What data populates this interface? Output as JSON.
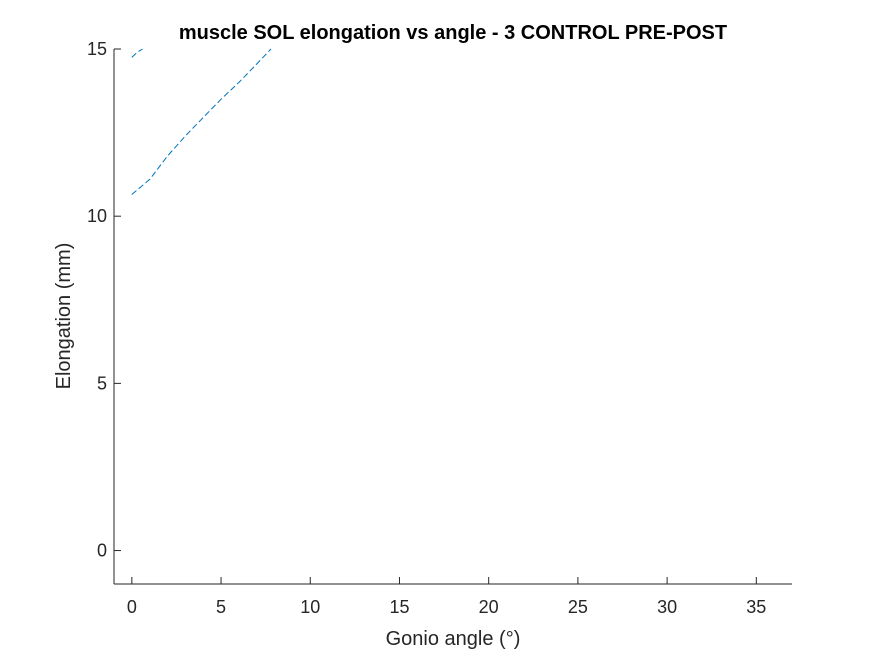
{
  "chart_data": {
    "type": "line",
    "title": "muscle SOL elongation vs angle - 3 CONTROL PRE-POST",
    "xlabel": "Gonio angle (°)",
    "ylabel": "Elongation (mm)",
    "xlim": [
      -1,
      37
    ],
    "ylim": [
      -1,
      15
    ],
    "xticks": [
      0,
      5,
      10,
      15,
      20,
      25,
      30,
      35
    ],
    "yticks": [
      0,
      5,
      10,
      15
    ],
    "xtick_labels": [
      "0",
      "5",
      "10",
      "15",
      "20",
      "25",
      "30",
      "35"
    ],
    "ytick_labels": [
      "0",
      "5",
      "10",
      "15"
    ],
    "grid": false,
    "legend": "none",
    "series": [
      {
        "color": "#0072BD",
        "line_style": "dashed",
        "x": [
          0,
          1,
          2,
          3,
          4,
          5,
          6,
          7,
          7.8
        ],
        "y": [
          10.65,
          11.1,
          11.8,
          12.4,
          12.95,
          13.5,
          14.0,
          14.55,
          15.0
        ]
      },
      {
        "color": "#0072BD",
        "line_style": "dashed",
        "x": [
          0,
          0.3,
          0.6
        ],
        "y": [
          14.75,
          14.9,
          15.0
        ]
      }
    ]
  }
}
